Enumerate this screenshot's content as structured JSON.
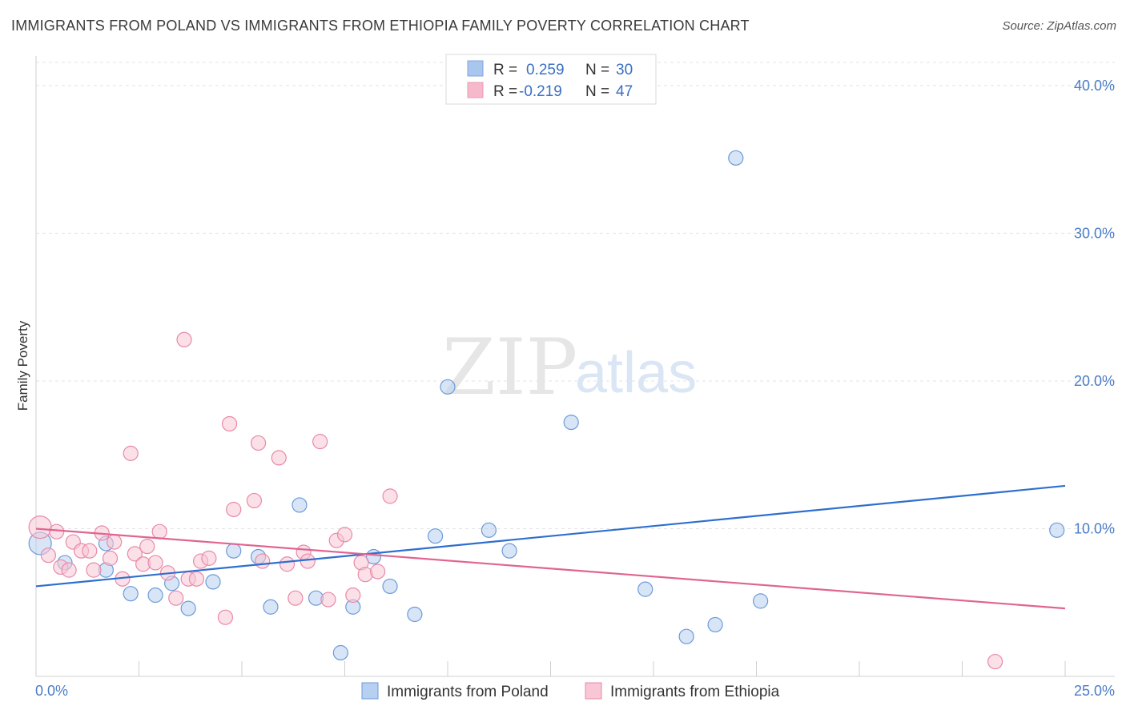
{
  "header": {
    "title": "IMMIGRANTS FROM POLAND VS IMMIGRANTS FROM ETHIOPIA FAMILY POVERTY CORRELATION CHART",
    "source": "Source: ZipAtlas.com"
  },
  "watermark": {
    "zip": "ZIP",
    "atlas": "atlas"
  },
  "stats_box": {
    "rows": [
      {
        "r_label": "R =",
        "r_value": "0.259",
        "n_label": "N =",
        "n_value": "30",
        "color": "#a9c6ef"
      },
      {
        "r_label": "R =",
        "r_value": "-0.219",
        "n_label": "N =",
        "n_value": "47",
        "color": "#f6b8cb"
      }
    ]
  },
  "chart_data": {
    "type": "scatter",
    "title": "IMMIGRANTS FROM POLAND VS IMMIGRANTS FROM ETHIOPIA FAMILY POVERTY CORRELATION CHART",
    "xlabel": "",
    "ylabel": "Family Poverty",
    "xlim": [
      0,
      25
    ],
    "ylim": [
      0,
      42
    ],
    "x_tick_labels": [
      "0.0%",
      "25.0%"
    ],
    "y_ticks": [
      10,
      20,
      30,
      40
    ],
    "y_tick_labels": [
      "10.0%",
      "20.0%",
      "30.0%",
      "40.0%"
    ],
    "grid": true,
    "legend_position": "bottom",
    "series": [
      {
        "name": "Immigrants from Poland",
        "color": "#6b9bd8",
        "fill": "#b7cff0",
        "trend": {
          "x": [
            0,
            25
          ],
          "y": [
            6.1,
            12.9
          ],
          "color": "#2e6fcf"
        },
        "points": [
          [
            0.1,
            9.0
          ],
          [
            0.7,
            7.7
          ],
          [
            1.7,
            7.2
          ],
          [
            1.7,
            9.0
          ],
          [
            2.3,
            5.6
          ],
          [
            2.9,
            5.5
          ],
          [
            3.3,
            6.3
          ],
          [
            3.7,
            4.6
          ],
          [
            4.3,
            6.4
          ],
          [
            4.8,
            8.5
          ],
          [
            5.4,
            8.1
          ],
          [
            5.7,
            4.7
          ],
          [
            6.4,
            11.6
          ],
          [
            6.8,
            5.3
          ],
          [
            7.4,
            1.6
          ],
          [
            7.7,
            4.7
          ],
          [
            8.2,
            8.1
          ],
          [
            8.6,
            6.1
          ],
          [
            9.2,
            4.2
          ],
          [
            9.7,
            9.5
          ],
          [
            10.0,
            19.6
          ],
          [
            11.0,
            9.9
          ],
          [
            11.5,
            8.5
          ],
          [
            13.0,
            17.2
          ],
          [
            14.8,
            5.9
          ],
          [
            15.8,
            2.7
          ],
          [
            16.5,
            3.5
          ],
          [
            17.0,
            35.1
          ],
          [
            17.6,
            5.1
          ],
          [
            24.8,
            9.9
          ]
        ]
      },
      {
        "name": "Immigrants from Ethiopia",
        "color": "#e88aa8",
        "fill": "#f8c6d5",
        "trend": {
          "x": [
            0,
            25
          ],
          "y": [
            10.0,
            4.6
          ],
          "color": "#e06591"
        },
        "points": [
          [
            0.1,
            10.1
          ],
          [
            0.3,
            8.2
          ],
          [
            0.5,
            9.8
          ],
          [
            0.6,
            7.4
          ],
          [
            0.8,
            7.2
          ],
          [
            0.9,
            9.1
          ],
          [
            1.1,
            8.5
          ],
          [
            1.3,
            8.5
          ],
          [
            1.4,
            7.2
          ],
          [
            1.6,
            9.7
          ],
          [
            1.8,
            8.0
          ],
          [
            1.9,
            9.1
          ],
          [
            2.1,
            6.6
          ],
          [
            2.3,
            15.1
          ],
          [
            2.4,
            8.3
          ],
          [
            2.6,
            7.6
          ],
          [
            2.7,
            8.8
          ],
          [
            2.9,
            7.7
          ],
          [
            3.0,
            9.8
          ],
          [
            3.2,
            7.0
          ],
          [
            3.4,
            5.3
          ],
          [
            3.6,
            22.8
          ],
          [
            3.7,
            6.6
          ],
          [
            3.9,
            6.6
          ],
          [
            4.0,
            7.8
          ],
          [
            4.2,
            8.0
          ],
          [
            4.6,
            4.0
          ],
          [
            4.7,
            17.1
          ],
          [
            4.8,
            11.3
          ],
          [
            5.3,
            11.9
          ],
          [
            5.4,
            15.8
          ],
          [
            5.5,
            7.8
          ],
          [
            5.9,
            14.8
          ],
          [
            6.1,
            7.6
          ],
          [
            6.3,
            5.3
          ],
          [
            6.5,
            8.4
          ],
          [
            6.6,
            7.8
          ],
          [
            6.9,
            15.9
          ],
          [
            7.1,
            5.2
          ],
          [
            7.3,
            9.2
          ],
          [
            7.5,
            9.6
          ],
          [
            7.7,
            5.5
          ],
          [
            7.9,
            7.7
          ],
          [
            8.0,
            6.9
          ],
          [
            8.3,
            7.1
          ],
          [
            8.6,
            12.2
          ],
          [
            23.3,
            1.0
          ]
        ]
      }
    ]
  }
}
